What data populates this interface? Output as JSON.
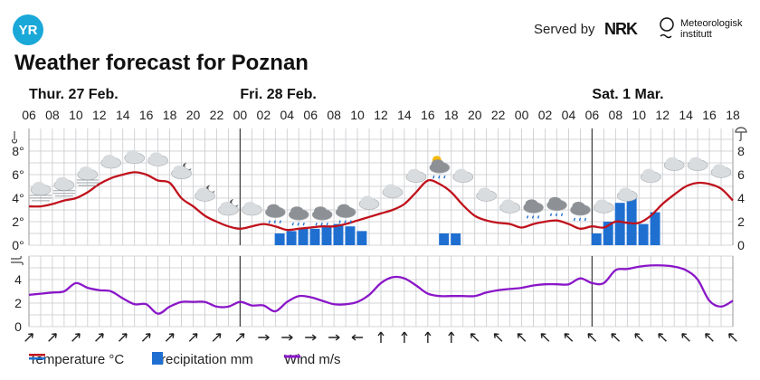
{
  "header": {
    "logo_text": "YR",
    "served_by": "Served by",
    "nrk": "NRK",
    "met_line1": "Meteorologisk",
    "met_line2": "institutt",
    "title": "Weather forecast for Poznan"
  },
  "colors": {
    "temperature": "#c0121c",
    "precipitation": "#1f6fd1",
    "wind": "#8a16c8",
    "grid": "#c7c9cc",
    "midnight": "#444444"
  },
  "chart_data": [
    {
      "type": "line",
      "title": "Temperature °C",
      "day_labels": [
        "Thur. 27 Feb.",
        "Fri. 28 Feb.",
        "Sat. 1 Mar."
      ],
      "hour_ticks": [
        "06",
        "08",
        "10",
        "12",
        "14",
        "16",
        "18",
        "20",
        "22",
        "00",
        "02",
        "04",
        "06",
        "08",
        "10",
        "12",
        "14",
        "16",
        "18",
        "20",
        "22",
        "00",
        "02",
        "04",
        "06",
        "08",
        "10",
        "12",
        "14",
        "16",
        "18"
      ],
      "ylim": [
        0,
        8
      ],
      "yticks": [
        "0°",
        "2°",
        "4°",
        "6°",
        "8°"
      ],
      "right_yticks": [
        "0",
        "2",
        "4",
        "6",
        "8"
      ],
      "grid": true,
      "x_hours": [
        0,
        1,
        2,
        3,
        4,
        5,
        6,
        7,
        8,
        9,
        10,
        11,
        12,
        13,
        14,
        15,
        16,
        17,
        18,
        19,
        20,
        21,
        22,
        23,
        24,
        25,
        26,
        27,
        28,
        29,
        30,
        31,
        32,
        33,
        34,
        35,
        36,
        37,
        38,
        39,
        40,
        41,
        42,
        43,
        44,
        45,
        46,
        47,
        48,
        49,
        50,
        51,
        52,
        53,
        54,
        55,
        56,
        57,
        58,
        59,
        60
      ],
      "temperature": [
        3.3,
        3.3,
        3.5,
        3.8,
        4.0,
        4.5,
        5.2,
        5.7,
        6.0,
        6.2,
        6.0,
        5.5,
        5.3,
        4.0,
        3.3,
        2.5,
        2.0,
        1.6,
        1.4,
        1.6,
        1.8,
        1.6,
        1.3,
        1.4,
        1.5,
        1.6,
        1.6,
        1.8,
        2.1,
        2.4,
        2.7,
        3.0,
        3.5,
        4.5,
        5.5,
        5.2,
        4.5,
        3.4,
        2.5,
        2.1,
        1.9,
        1.8,
        1.5,
        1.8,
        2.0,
        2.1,
        1.8,
        1.4,
        1.6,
        1.5,
        2.0,
        1.9,
        1.9,
        2.5,
        3.5,
        4.3,
        5.0,
        5.3,
        5.2,
        4.8,
        3.8
      ],
      "precipitation": [
        {
          "hour": 21.4,
          "mm": 0.25
        },
        {
          "hour": 22.4,
          "mm": 0.3
        },
        {
          "hour": 23.4,
          "mm": 0.35
        },
        {
          "hour": 24.4,
          "mm": 0.35
        },
        {
          "hour": 25.4,
          "mm": 0.4
        },
        {
          "hour": 26.4,
          "mm": 0.45
        },
        {
          "hour": 27.4,
          "mm": 0.4
        },
        {
          "hour": 28.4,
          "mm": 0.3
        },
        {
          "hour": 35.4,
          "mm": 0.25
        },
        {
          "hour": 36.4,
          "mm": 0.25
        },
        {
          "hour": 48.4,
          "mm": 0.25
        },
        {
          "hour": 49.4,
          "mm": 0.5
        },
        {
          "hour": 50.4,
          "mm": 0.9
        },
        {
          "hour": 51.4,
          "mm": 1.05
        },
        {
          "hour": 52.4,
          "mm": 0.45
        },
        {
          "hour": 53.4,
          "mm": 0.7
        }
      ],
      "weather_icons": [
        {
          "hour": 1,
          "temp": 4.7,
          "icon": "fog-icon"
        },
        {
          "hour": 3,
          "temp": 5.1,
          "icon": "fog-icon"
        },
        {
          "hour": 5,
          "temp": 6.0,
          "icon": "fog-icon"
        },
        {
          "hour": 7,
          "temp": 7.0,
          "icon": "cloud-icon"
        },
        {
          "hour": 9,
          "temp": 7.4,
          "icon": "cloud-icon"
        },
        {
          "hour": 11,
          "temp": 7.2,
          "icon": "cloud-icon"
        },
        {
          "hour": 13,
          "temp": 6.1,
          "icon": "cloud-moon-icon"
        },
        {
          "hour": 15,
          "temp": 4.2,
          "icon": "cloud-moon-icon"
        },
        {
          "hour": 17,
          "temp": 3.0,
          "icon": "cloud-moon-icon"
        },
        {
          "hour": 19,
          "temp": 3.0,
          "icon": "cloud-icon"
        },
        {
          "hour": 21,
          "temp": 2.8,
          "icon": "cloud-rain-icon"
        },
        {
          "hour": 23,
          "temp": 2.6,
          "icon": "cloud-rain-icon"
        },
        {
          "hour": 25,
          "temp": 2.6,
          "icon": "cloud-rain-icon"
        },
        {
          "hour": 27,
          "temp": 2.8,
          "icon": "cloud-rain-icon"
        },
        {
          "hour": 29,
          "temp": 3.5,
          "icon": "cloud-icon"
        },
        {
          "hour": 31,
          "temp": 4.5,
          "icon": "cloud-icon"
        },
        {
          "hour": 33,
          "temp": 5.8,
          "icon": "cloud-icon"
        },
        {
          "hour": 35,
          "temp": 6.6,
          "icon": "cloud-sun-rain-icon"
        },
        {
          "hour": 37,
          "temp": 5.8,
          "icon": "cloud-icon"
        },
        {
          "hour": 39,
          "temp": 4.2,
          "icon": "cloud-icon"
        },
        {
          "hour": 41,
          "temp": 3.2,
          "icon": "cloud-icon"
        },
        {
          "hour": 43,
          "temp": 3.2,
          "icon": "cloud-rain-icon"
        },
        {
          "hour": 45,
          "temp": 3.4,
          "icon": "cloud-rain-icon"
        },
        {
          "hour": 47,
          "temp": 3.0,
          "icon": "cloud-rain-icon"
        },
        {
          "hour": 49,
          "temp": 3.2,
          "icon": "cloud-icon"
        },
        {
          "hour": 51,
          "temp": 4.2,
          "icon": "cloud-icon"
        },
        {
          "hour": 53,
          "temp": 5.8,
          "icon": "cloud-icon"
        },
        {
          "hour": 55,
          "temp": 6.8,
          "icon": "cloud-icon"
        },
        {
          "hour": 57,
          "temp": 6.8,
          "icon": "cloud-icon"
        },
        {
          "hour": 59,
          "temp": 6.2,
          "icon": "cloud-icon"
        }
      ]
    },
    {
      "type": "line",
      "title": "Wind m/s",
      "ylim": [
        0,
        6
      ],
      "yticks": [
        "0",
        "2",
        "4"
      ],
      "grid": true,
      "wind": [
        2.7,
        2.8,
        2.9,
        3.0,
        3.7,
        3.3,
        3.1,
        3.0,
        2.4,
        1.9,
        1.9,
        1.1,
        1.7,
        2.1,
        2.1,
        2.1,
        1.7,
        1.7,
        2.1,
        1.8,
        1.8,
        1.3,
        2.1,
        2.6,
        2.5,
        2.2,
        1.9,
        1.9,
        2.1,
        2.7,
        3.7,
        4.2,
        4.1,
        3.5,
        2.8,
        2.6,
        2.6,
        2.6,
        2.6,
        2.9,
        3.1,
        3.2,
        3.3,
        3.5,
        3.6,
        3.6,
        3.6,
        4.1,
        3.7,
        3.7,
        4.8,
        4.9,
        5.1,
        5.2,
        5.2,
        5.1,
        4.8,
        4.0,
        2.2,
        1.7,
        2.2
      ],
      "wind_direction_deg": [
        225,
        225,
        225,
        225,
        225,
        225,
        225,
        225,
        225,
        225,
        270,
        270,
        270,
        270,
        90,
        180,
        180,
        180,
        180,
        135,
        135,
        135,
        135,
        135,
        135,
        135,
        135,
        135,
        135,
        135,
        135
      ]
    }
  ],
  "legend": {
    "temperature": "Temperature °C",
    "precipitation": "Precipitation mm",
    "wind": "Wind m/s"
  }
}
